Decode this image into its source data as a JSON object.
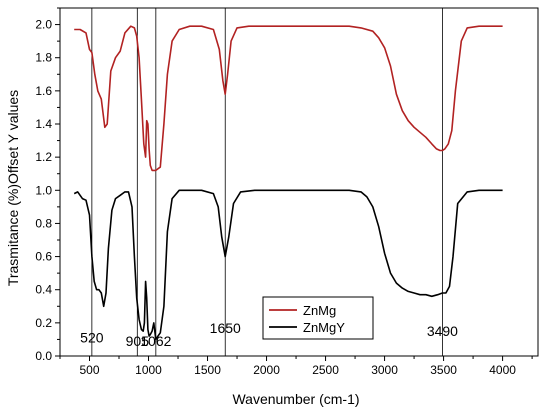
{
  "chart_data": {
    "type": "line",
    "title": "",
    "xlabel": "Wavenumber (cm-1)",
    "ylabel": "Trasmitance (%)Offset Y values",
    "xlim": [
      250,
      4300
    ],
    "ylim": [
      0,
      2.1
    ],
    "x_ticks": [
      500,
      1000,
      1500,
      2000,
      2500,
      3000,
      3500,
      4000
    ],
    "x_tick_labels": [
      "500",
      "1000",
      "1500",
      "2000",
      "2500",
      "3000",
      "3500",
      "4000"
    ],
    "y_ticks": [
      0.0,
      0.2,
      0.4,
      0.6,
      0.8,
      1.0,
      1.2,
      1.4,
      1.6,
      1.8,
      2.0
    ],
    "y_tick_labels": [
      "0.0",
      "0.2",
      "0.4",
      "0.6",
      "0.8",
      "1.0",
      "1.2",
      "1.4",
      "1.6",
      "1.8",
      "2.0"
    ],
    "grid": false,
    "legend_position": "bottom-center",
    "series": [
      {
        "name": "ZnMg",
        "color": "#b22222",
        "x": [
          370,
          420,
          470,
          500,
          520,
          545,
          570,
          600,
          630,
          650,
          680,
          720,
          760,
          800,
          850,
          880,
          900,
          920,
          940,
          960,
          975,
          985,
          995,
          1005,
          1015,
          1030,
          1050,
          1062,
          1080,
          1100,
          1130,
          1160,
          1200,
          1260,
          1350,
          1450,
          1550,
          1600,
          1630,
          1650,
          1670,
          1700,
          1750,
          1850,
          2000,
          2200,
          2400,
          2600,
          2700,
          2800,
          2900,
          2950,
          3000,
          3050,
          3100,
          3150,
          3200,
          3250,
          3300,
          3350,
          3400,
          3440,
          3470,
          3490,
          3510,
          3540,
          3570,
          3600,
          3650,
          3700,
          3800,
          3900,
          4000
        ],
        "y": [
          1.97,
          1.97,
          1.95,
          1.85,
          1.83,
          1.7,
          1.6,
          1.55,
          1.38,
          1.4,
          1.72,
          1.8,
          1.84,
          1.95,
          1.99,
          1.98,
          1.93,
          1.8,
          1.55,
          1.28,
          1.2,
          1.42,
          1.4,
          1.25,
          1.15,
          1.12,
          1.12,
          1.12,
          1.13,
          1.14,
          1.4,
          1.7,
          1.9,
          1.97,
          1.99,
          1.99,
          1.97,
          1.85,
          1.66,
          1.58,
          1.7,
          1.9,
          1.98,
          1.99,
          1.99,
          1.99,
          1.99,
          1.99,
          1.99,
          1.98,
          1.96,
          1.92,
          1.86,
          1.75,
          1.58,
          1.48,
          1.42,
          1.38,
          1.35,
          1.32,
          1.28,
          1.25,
          1.24,
          1.24,
          1.25,
          1.28,
          1.36,
          1.6,
          1.9,
          1.98,
          1.99,
          1.99,
          1.99
        ]
      },
      {
        "name": "ZnMgY",
        "color": "#000000",
        "x": [
          370,
          400,
          440,
          470,
          500,
          520,
          540,
          560,
          580,
          600,
          620,
          640,
          660,
          690,
          720,
          760,
          800,
          830,
          860,
          880,
          900,
          920,
          940,
          955,
          965,
          975,
          985,
          995,
          1005,
          1015,
          1030,
          1045,
          1062,
          1080,
          1100,
          1130,
          1160,
          1200,
          1260,
          1350,
          1450,
          1550,
          1590,
          1620,
          1650,
          1680,
          1720,
          1780,
          1900,
          2100,
          2400,
          2700,
          2800,
          2850,
          2900,
          2950,
          3000,
          3050,
          3100,
          3150,
          3200,
          3250,
          3300,
          3350,
          3400,
          3450,
          3490,
          3520,
          3550,
          3580,
          3620,
          3700,
          3800,
          3900,
          4000
        ],
        "y": [
          0.98,
          0.99,
          0.95,
          0.94,
          0.85,
          0.6,
          0.45,
          0.4,
          0.4,
          0.38,
          0.3,
          0.38,
          0.65,
          0.88,
          0.95,
          0.97,
          0.99,
          0.99,
          0.9,
          0.6,
          0.35,
          0.22,
          0.16,
          0.15,
          0.2,
          0.45,
          0.35,
          0.16,
          0.12,
          0.13,
          0.15,
          0.2,
          0.1,
          0.12,
          0.14,
          0.3,
          0.75,
          0.95,
          1.0,
          1.0,
          1.0,
          0.98,
          0.9,
          0.72,
          0.6,
          0.72,
          0.92,
          0.99,
          1.0,
          1.0,
          1.0,
          1.0,
          0.99,
          0.96,
          0.9,
          0.78,
          0.62,
          0.5,
          0.44,
          0.41,
          0.39,
          0.38,
          0.37,
          0.37,
          0.36,
          0.37,
          0.38,
          0.38,
          0.42,
          0.6,
          0.92,
          0.99,
          1.0,
          1.0,
          1.0
        ]
      }
    ],
    "vlines": [
      520,
      905,
      1062,
      1650,
      3490
    ],
    "annotations": [
      {
        "text": "520",
        "x": 520,
        "y": 0.08
      },
      {
        "text": "905",
        "x": 905,
        "y": 0.06
      },
      {
        "text": "1062",
        "x": 1062,
        "y": 0.06
      },
      {
        "text": "1650",
        "x": 1650,
        "y": 0.14
      },
      {
        "text": "3490",
        "x": 3490,
        "y": 0.12
      }
    ]
  }
}
